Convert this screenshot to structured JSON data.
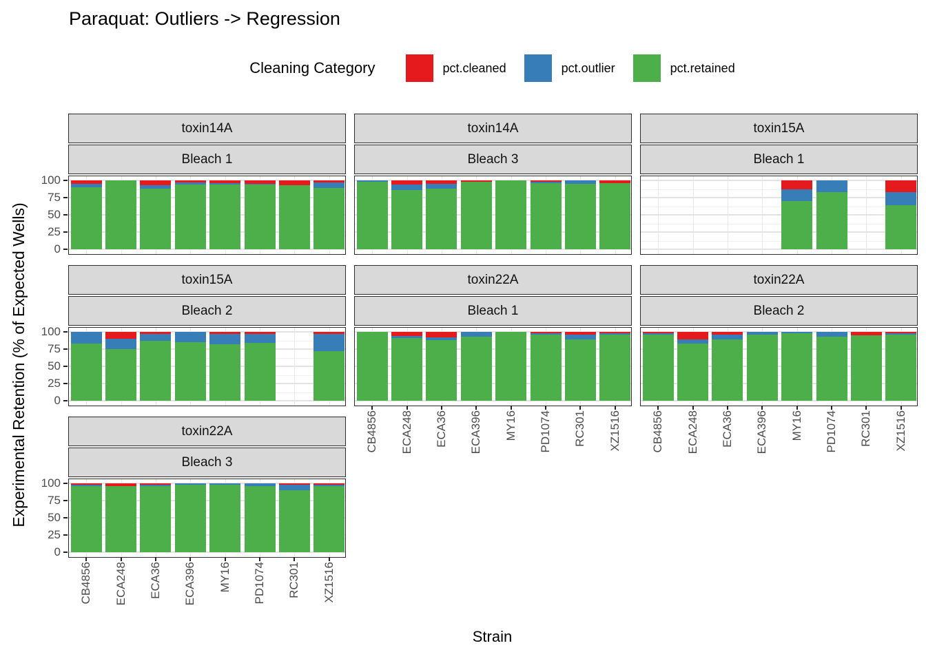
{
  "chart_data": {
    "type": "bar",
    "stacked": true,
    "title": "Paraquat: Outliers -> Regression",
    "legend_title": "Cleaning Category",
    "xlabel": "Strain",
    "ylabel": "Experimental Retention (% of Expected Wells)",
    "legend_position": "top",
    "grid": "on",
    "ylim": [
      0,
      100
    ],
    "y_ticks": [
      0,
      25,
      50,
      75,
      100
    ],
    "y_minor_ticks": [
      12.5,
      37.5,
      62.5,
      87.5
    ],
    "categories": [
      "CB4856",
      "ECA248",
      "ECA36",
      "ECA396",
      "MY16",
      "PD1074",
      "RC301",
      "XZ1516"
    ],
    "series_names": [
      "pct.cleaned",
      "pct.outlier",
      "pct.retained"
    ],
    "series_colors": [
      "#E41A1C",
      "#377EB8",
      "#4DAF4A"
    ],
    "facets": [
      {
        "toxin": "toxin14A",
        "bleach": "Bleach 1",
        "grid_pos": [
          0,
          0
        ],
        "values": {
          "pct.cleaned": [
            5,
            0,
            7,
            3,
            4,
            5,
            7,
            3
          ],
          "pct.outlier": [
            5,
            0,
            5,
            3,
            2,
            1,
            0,
            8
          ],
          "pct.retained": [
            90,
            100,
            88,
            94,
            94,
            94,
            93,
            89
          ]
        }
      },
      {
        "toxin": "toxin14A",
        "bleach": "Bleach 3",
        "grid_pos": [
          0,
          1
        ],
        "values": {
          "pct.cleaned": [
            0,
            6,
            5,
            2,
            0,
            2,
            0,
            4
          ],
          "pct.outlier": [
            2,
            8,
            7,
            0,
            0,
            2,
            5,
            0
          ],
          "pct.retained": [
            98,
            86,
            88,
            98,
            100,
            96,
            95,
            96
          ]
        }
      },
      {
        "toxin": "toxin15A",
        "bleach": "Bleach 1",
        "grid_pos": [
          0,
          2
        ],
        "values": {
          "pct.cleaned": [
            null,
            null,
            null,
            null,
            13,
            0,
            null,
            17
          ],
          "pct.outlier": [
            null,
            null,
            null,
            null,
            17,
            17,
            null,
            19
          ],
          "pct.retained": [
            null,
            null,
            null,
            null,
            70,
            83,
            null,
            64
          ]
        }
      },
      {
        "toxin": "toxin15A",
        "bleach": "Bleach 2",
        "grid_pos": [
          1,
          0
        ],
        "values": {
          "pct.cleaned": [
            0,
            10,
            3,
            0,
            3,
            3,
            null,
            3
          ],
          "pct.outlier": [
            17,
            15,
            10,
            15,
            15,
            13,
            null,
            25
          ],
          "pct.retained": [
            83,
            75,
            87,
            85,
            82,
            84,
            null,
            72
          ]
        }
      },
      {
        "toxin": "toxin22A",
        "bleach": "Bleach 1",
        "grid_pos": [
          1,
          1
        ],
        "values": {
          "pct.cleaned": [
            0,
            6,
            8,
            0,
            0,
            2,
            4,
            2
          ],
          "pct.outlier": [
            0,
            3,
            4,
            7,
            0,
            2,
            7,
            2
          ],
          "pct.retained": [
            100,
            91,
            88,
            93,
            100,
            96,
            89,
            96
          ]
        }
      },
      {
        "toxin": "toxin22A",
        "bleach": "Bleach 2",
        "grid_pos": [
          1,
          2
        ],
        "values": {
          "pct.cleaned": [
            2,
            11,
            4,
            0,
            0,
            0,
            5,
            2
          ],
          "pct.outlier": [
            2,
            6,
            7,
            4,
            2,
            7,
            0,
            2
          ],
          "pct.retained": [
            96,
            83,
            89,
            96,
            98,
            93,
            95,
            96
          ]
        }
      },
      {
        "toxin": "toxin22A",
        "bleach": "Bleach 3",
        "grid_pos": [
          2,
          0
        ],
        "values": {
          "pct.cleaned": [
            2,
            4,
            2,
            0,
            0,
            0,
            2,
            2
          ],
          "pct.outlier": [
            2,
            0,
            2,
            2,
            2,
            4,
            8,
            2
          ],
          "pct.retained": [
            96,
            96,
            96,
            98,
            98,
            96,
            90,
            96
          ]
        }
      }
    ]
  }
}
